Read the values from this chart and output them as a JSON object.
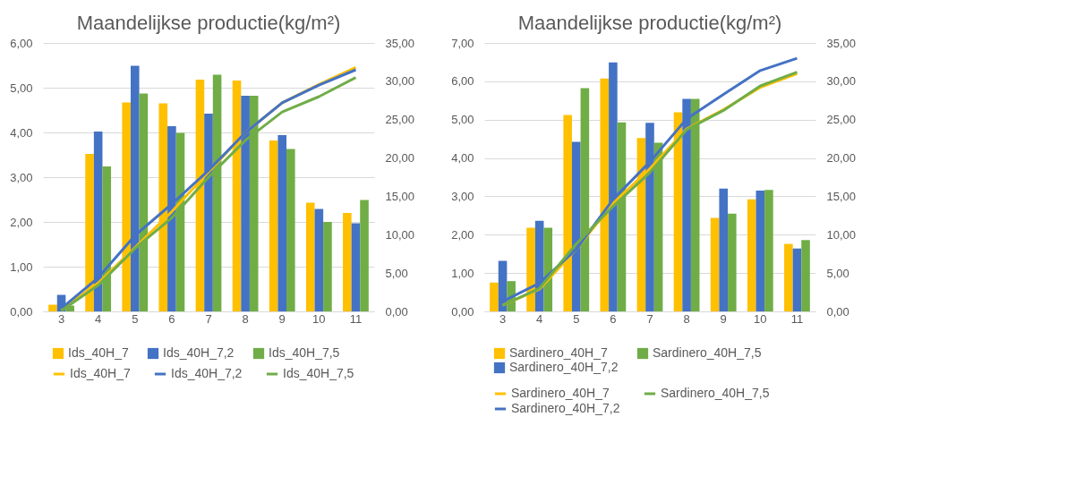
{
  "chart_data": [
    {
      "type": "bar",
      "title": "Maandelijkse productie(kg/m²)",
      "categories": [
        "3",
        "4",
        "5",
        "6",
        "7",
        "8",
        "9",
        "10",
        "11"
      ],
      "ylim": [
        0,
        6
      ],
      "yticks": [
        {
          "value": 0,
          "label": "0,00"
        },
        {
          "value": 1,
          "label": "1,00"
        },
        {
          "value": 2,
          "label": "2,00"
        },
        {
          "value": 3,
          "label": "3,00"
        },
        {
          "value": 4,
          "label": "4,00"
        },
        {
          "value": 5,
          "label": "5,00"
        },
        {
          "value": 6,
          "label": "6,00"
        }
      ],
      "y2lim": [
        0,
        35
      ],
      "y2ticks": [
        {
          "value": 0,
          "label": "0,00"
        },
        {
          "value": 5,
          "label": "5,00"
        },
        {
          "value": 10,
          "label": "10,00"
        },
        {
          "value": 15,
          "label": "15,00"
        },
        {
          "value": 20,
          "label": "20,00"
        },
        {
          "value": 25,
          "label": "25,00"
        },
        {
          "value": 30,
          "label": "30,00"
        },
        {
          "value": 35,
          "label": "35,00"
        }
      ],
      "grid": "y",
      "legend": "bottom",
      "series": [
        {
          "name": "Ids_40H_7",
          "color": "#ffc000",
          "values": [
            0.15,
            3.52,
            4.67,
            4.65,
            5.18,
            5.16,
            3.82,
            2.43,
            2.2
          ]
        },
        {
          "name": "Ids_40H_7,2",
          "color": "#4472c4",
          "values": [
            0.37,
            4.02,
            5.49,
            4.14,
            4.42,
            4.82,
            3.94,
            2.29,
            1.97
          ]
        },
        {
          "name": "Ids_40H_7,5",
          "color": "#70ad47",
          "values": [
            0.13,
            3.24,
            4.87,
            3.99,
            5.29,
            4.82,
            3.63,
            2.0,
            2.49
          ]
        },
        {
          "name": "Ids_40H_7",
          "type": "line",
          "axis": "y2",
          "color": "#ffc000",
          "values": [
            0.2,
            3.7,
            8.3,
            13.0,
            18.2,
            23.3,
            27.2,
            29.6,
            31.8
          ]
        },
        {
          "name": "Ids_40H_7,2",
          "type": "line",
          "axis": "y2",
          "color": "#4472c4",
          "values": [
            0.4,
            4.4,
            9.9,
            14.0,
            18.4,
            23.3,
            27.2,
            29.5,
            31.5
          ]
        },
        {
          "name": "Ids_40H_7,5",
          "type": "line",
          "axis": "y2",
          "color": "#70ad47",
          "values": [
            0.1,
            3.4,
            8.2,
            12.2,
            17.5,
            22.3,
            26.0,
            28.0,
            30.5
          ]
        }
      ]
    },
    {
      "type": "bar",
      "title": "Maandelijkse productie(kg/m²)",
      "categories": [
        "3",
        "4",
        "5",
        "6",
        "7",
        "8",
        "9",
        "10",
        "11"
      ],
      "ylim": [
        0,
        7
      ],
      "yticks": [
        {
          "value": 0,
          "label": "0,00"
        },
        {
          "value": 1,
          "label": "1,00"
        },
        {
          "value": 2,
          "label": "2,00"
        },
        {
          "value": 3,
          "label": "3,00"
        },
        {
          "value": 4,
          "label": "4,00"
        },
        {
          "value": 5,
          "label": "5,00"
        },
        {
          "value": 6,
          "label": "6,00"
        },
        {
          "value": 7,
          "label": "7,00"
        }
      ],
      "y2lim": [
        0,
        35
      ],
      "y2ticks": [
        {
          "value": 0,
          "label": "0,00"
        },
        {
          "value": 5,
          "label": "5,00"
        },
        {
          "value": 10,
          "label": "10,00"
        },
        {
          "value": 15,
          "label": "15,00"
        },
        {
          "value": 20,
          "label": "20,00"
        },
        {
          "value": 25,
          "label": "25,00"
        },
        {
          "value": 30,
          "label": "30,00"
        },
        {
          "value": 35,
          "label": "35,00"
        }
      ],
      "grid": "y",
      "legend": "bottom",
      "series": [
        {
          "name": "Sardinero_40H_7",
          "color": "#ffc000",
          "values": [
            0.75,
            2.18,
            5.12,
            6.07,
            4.52,
            5.19,
            2.44,
            2.92,
            1.76
          ]
        },
        {
          "name": "Sardinero_40H_7,2",
          "color": "#4472c4",
          "values": [
            1.32,
            2.36,
            4.42,
            6.49,
            4.92,
            5.54,
            3.2,
            3.15,
            1.64
          ]
        },
        {
          "name": "Sardinero_40H_7,5",
          "color": "#70ad47",
          "values": [
            0.79,
            2.18,
            5.82,
            4.93,
            4.4,
            5.54,
            2.55,
            3.17,
            1.86
          ]
        },
        {
          "name": "Sardinero_40H_7",
          "type": "line",
          "axis": "y2",
          "color": "#ffc000",
          "values": [
            0.8,
            2.9,
            8.1,
            14.1,
            18.6,
            23.8,
            26.3,
            29.2,
            31.0
          ]
        },
        {
          "name": "Sardinero_40H_7,2",
          "type": "line",
          "axis": "y2",
          "color": "#4472c4",
          "values": [
            1.3,
            3.7,
            8.1,
            14.6,
            19.5,
            25.1,
            28.3,
            31.4,
            33.0
          ]
        },
        {
          "name": "Sardinero_40H_7,5",
          "type": "line",
          "axis": "y2",
          "color": "#70ad47",
          "values": [
            0.8,
            3.0,
            8.8,
            13.7,
            18.1,
            23.7,
            26.2,
            29.4,
            31.2
          ]
        }
      ]
    }
  ]
}
